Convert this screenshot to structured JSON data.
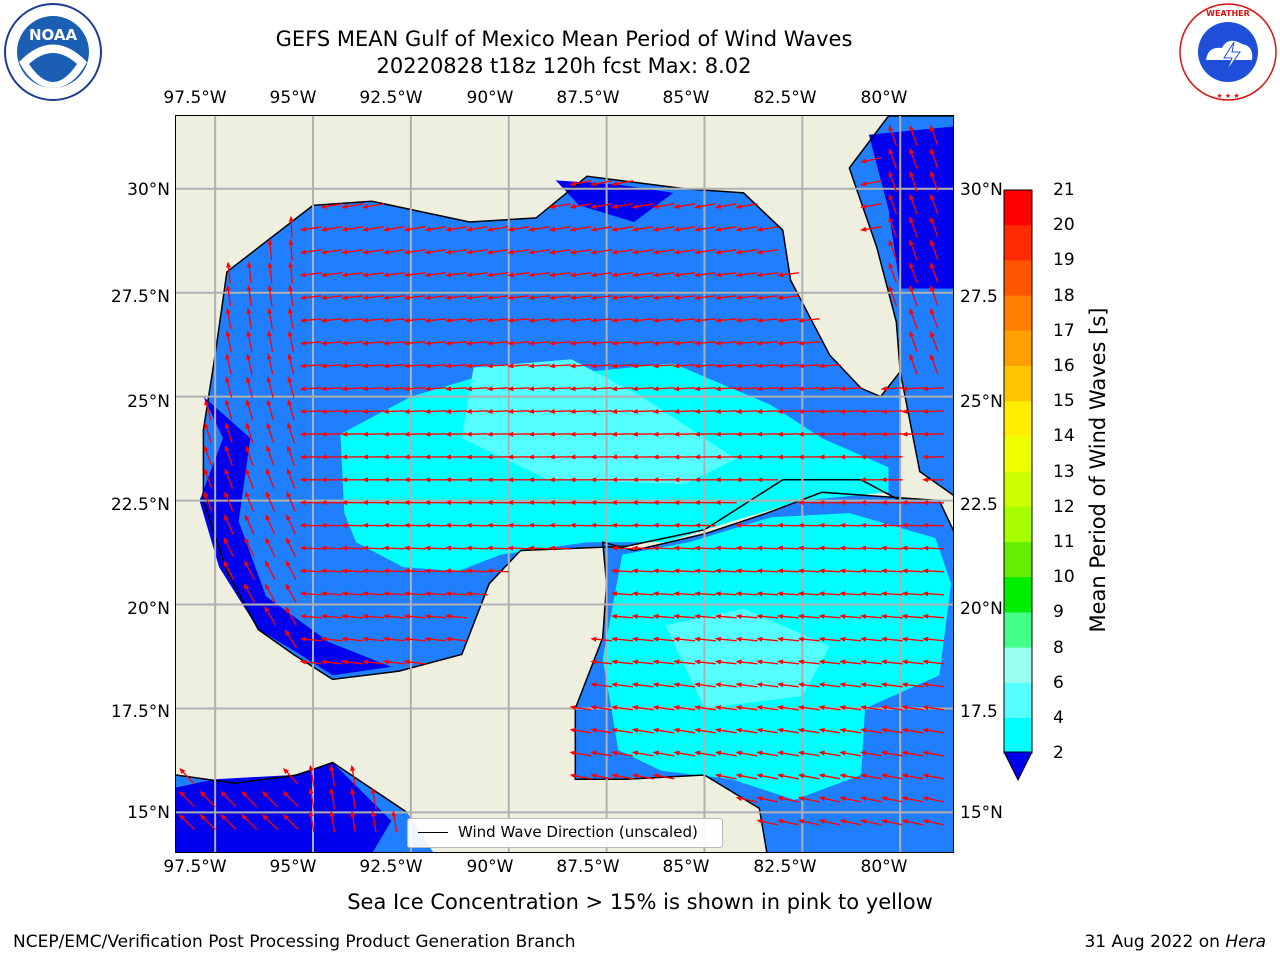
{
  "title": {
    "line1": "GEFS MEAN Gulf of Mexico Mean Period of Wind Waves",
    "line2": "20220828 t18z 120h fcst   Max: 8.02"
  },
  "logos": {
    "left": "NOAA",
    "right": "NATIONAL WEATHER SERVICE"
  },
  "axes": {
    "lon_ticks": [
      "97.5°W",
      "95°W",
      "92.5°W",
      "90°W",
      "87.5°W",
      "85°W",
      "82.5°W",
      "80°W"
    ],
    "lat_ticks_left": [
      "30°N",
      "27.5°N",
      "25°N",
      "22.5°N",
      "20°N",
      "17.5°N",
      "15°N"
    ],
    "lat_ticks_right": [
      "30°N",
      "27.5",
      "25°N",
      "22.5",
      "20°N",
      "17.5",
      "15°N"
    ]
  },
  "colorbar": {
    "title": "Mean Period of Wind Waves [s]",
    "labels": [
      "21",
      "20",
      "19",
      "18",
      "17",
      "16",
      "15",
      "14",
      "13",
      "12",
      "11",
      "10",
      "9",
      "8",
      "6",
      "4",
      "2"
    ],
    "colors": [
      "#ff0000",
      "#ff2a00",
      "#ff5500",
      "#ff8000",
      "#ffa000",
      "#ffc400",
      "#ffee00",
      "#eeff00",
      "#ccff00",
      "#a8ff00",
      "#66ee00",
      "#00ee00",
      "#44ff88",
      "#99ffee",
      "#55ffff",
      "#00ffff",
      "#0077ff"
    ],
    "extend_color": "#0000ee"
  },
  "legend": {
    "label": "Wind Wave Direction (unscaled)"
  },
  "map": {
    "land_color": "#efefdf",
    "zone_colors": {
      "deep": "#0000ee",
      "mid": "#1f7fff",
      "light": "#00ffff",
      "pale": "#55ffff"
    },
    "arrow_color": "#ff0000"
  },
  "subnote": "Sea Ice Concentration > 15% is shown in pink to yellow",
  "footer": {
    "left": "NCEP/EMC/Verification Post Processing Product Generation Branch",
    "right_date": "31 Aug 2022 on ",
    "right_host": "Hera"
  }
}
